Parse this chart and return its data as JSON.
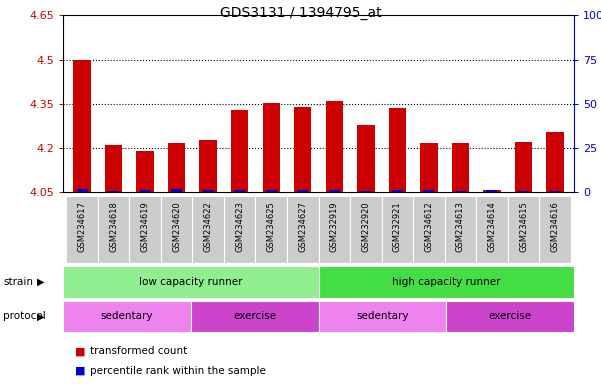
{
  "title": "GDS3131 / 1394795_at",
  "samples": [
    "GSM234617",
    "GSM234618",
    "GSM234619",
    "GSM234620",
    "GSM234622",
    "GSM234623",
    "GSM234625",
    "GSM234627",
    "GSM232919",
    "GSM232920",
    "GSM232921",
    "GSM234612",
    "GSM234613",
    "GSM234614",
    "GSM234615",
    "GSM234616"
  ],
  "red_values": [
    4.5,
    4.21,
    4.19,
    4.215,
    4.225,
    4.33,
    4.352,
    4.34,
    4.36,
    4.278,
    4.335,
    4.215,
    4.215,
    4.058,
    4.22,
    4.255
  ],
  "blue_pct": [
    10,
    5,
    6,
    10,
    7,
    9,
    7,
    8,
    8,
    4,
    7,
    7,
    4,
    6,
    5,
    5
  ],
  "ymin": 4.05,
  "ymax": 4.65,
  "yticks_left": [
    4.05,
    4.2,
    4.35,
    4.5,
    4.65
  ],
  "ytick_labels_left": [
    "4.05",
    "4.2",
    "4.35",
    "4.5",
    "4.65"
  ],
  "yticks_right": [
    0,
    25,
    50,
    75,
    100
  ],
  "ytick_labels_right": [
    "0",
    "25",
    "50",
    "75",
    "100%"
  ],
  "hgrid_lines": [
    4.2,
    4.35,
    4.5
  ],
  "bar_color": "#cc0000",
  "blue_color": "#0000cc",
  "cell_bg": "#cccccc",
  "strain_bands": [
    {
      "label": "low capacity runner",
      "start": 0,
      "end": 8,
      "color": "#90ee90"
    },
    {
      "label": "high capacity runner",
      "start": 8,
      "end": 16,
      "color": "#44dd44"
    }
  ],
  "protocol_bands": [
    {
      "label": "sedentary",
      "start": 0,
      "end": 4,
      "color": "#ee82ee"
    },
    {
      "label": "exercise",
      "start": 4,
      "end": 8,
      "color": "#cc44cc"
    },
    {
      "label": "sedentary",
      "start": 8,
      "end": 12,
      "color": "#ee82ee"
    },
    {
      "label": "exercise",
      "start": 12,
      "end": 16,
      "color": "#cc44cc"
    }
  ],
  "legend_items": [
    {
      "color": "#cc0000",
      "label": "transformed count"
    },
    {
      "color": "#0000cc",
      "label": "percentile rank within the sample"
    }
  ],
  "bar_width": 0.55,
  "blue_bar_width": 0.35
}
